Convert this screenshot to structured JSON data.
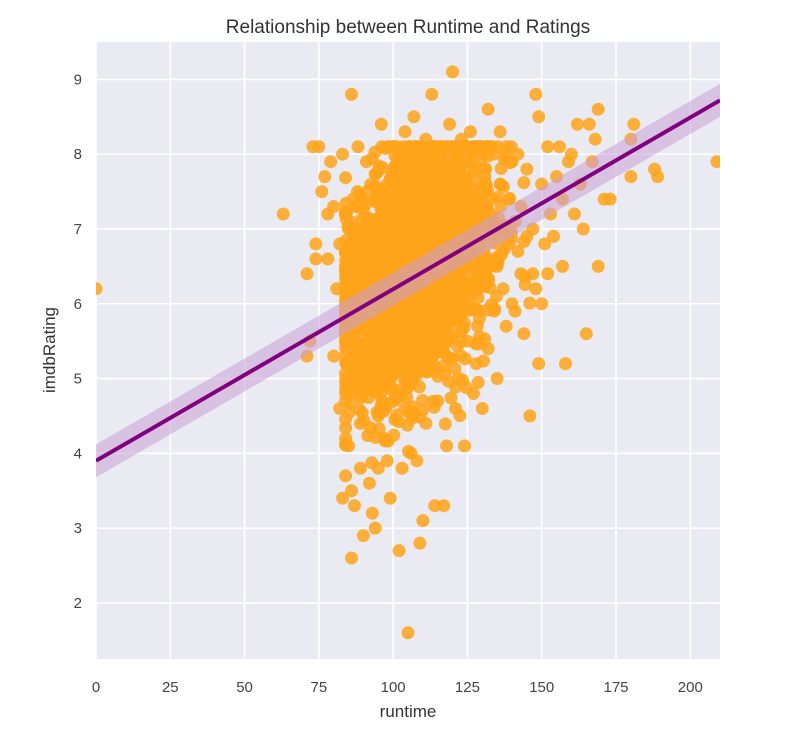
{
  "chart_data": {
    "type": "scatter",
    "title": "Relationship between Runtime and Ratings",
    "xlabel": "runtime",
    "ylabel": "imdbRating",
    "xlim": [
      0,
      210
    ],
    "ylim": [
      1.25,
      9.5
    ],
    "xticks": [
      0,
      25,
      50,
      75,
      100,
      125,
      150,
      175,
      200
    ],
    "yticks": [
      2,
      3,
      4,
      5,
      6,
      7,
      8,
      9
    ],
    "grid": true,
    "legend": "none",
    "colors": {
      "points": "#ffa31a",
      "line": "#800080",
      "ci_band": "#c9a0d6",
      "background": "#eaeaf2",
      "grid": "#ffffff"
    },
    "regression": {
      "x": [
        0,
        210
      ],
      "y": [
        3.9,
        8.72
      ],
      "ci_lower": [
        3.68,
        8.5
      ],
      "ci_upper": [
        4.12,
        8.94
      ]
    },
    "points": [
      [
        0,
        6.2
      ],
      [
        63,
        7.2
      ],
      [
        71,
        5.3
      ],
      [
        71,
        6.4
      ],
      [
        72,
        5.5
      ],
      [
        73,
        8.1
      ],
      [
        74,
        6.8
      ],
      [
        74,
        6.6
      ],
      [
        75,
        8.1
      ],
      [
        76,
        7.5
      ],
      [
        77,
        7.7
      ],
      [
        78,
        7.2
      ],
      [
        78,
        6.6
      ],
      [
        79,
        7.9
      ],
      [
        80,
        5.3
      ],
      [
        80,
        7.3
      ],
      [
        81,
        6.2
      ],
      [
        82,
        6.8
      ],
      [
        82,
        4.6
      ],
      [
        83,
        8.0
      ],
      [
        83,
        3.4
      ],
      [
        84,
        3.7
      ],
      [
        84,
        4.2
      ],
      [
        85,
        4.1
      ],
      [
        85,
        7.0
      ],
      [
        86,
        8.8
      ],
      [
        86,
        3.5
      ],
      [
        86,
        2.6
      ],
      [
        87,
        3.3
      ],
      [
        87,
        6.6
      ],
      [
        88,
        7.5
      ],
      [
        88,
        5.8
      ],
      [
        89,
        4.4
      ],
      [
        89,
        3.8
      ],
      [
        90,
        6.1
      ],
      [
        90,
        2.9
      ],
      [
        91,
        7.9
      ],
      [
        91,
        4.9
      ],
      [
        92,
        3.6
      ],
      [
        92,
        6.5
      ],
      [
        93,
        3.2
      ],
      [
        93,
        5.4
      ],
      [
        94,
        3.0
      ],
      [
        94,
        7.1
      ],
      [
        95,
        3.8
      ],
      [
        95,
        4.5
      ],
      [
        96,
        8.4
      ],
      [
        96,
        5.9
      ],
      [
        97,
        6.8
      ],
      [
        97,
        4.2
      ],
      [
        98,
        3.9
      ],
      [
        98,
        7.6
      ],
      [
        99,
        3.4
      ],
      [
        99,
        5.2
      ],
      [
        100,
        8.1
      ],
      [
        100,
        6.3
      ],
      [
        101,
        4.8
      ],
      [
        101,
        7.4
      ],
      [
        102,
        2.7
      ],
      [
        102,
        5.7
      ],
      [
        103,
        3.8
      ],
      [
        103,
        6.9
      ],
      [
        104,
        8.3
      ],
      [
        104,
        4.6
      ],
      [
        105,
        1.6
      ],
      [
        105,
        7.2
      ],
      [
        106,
        5.6
      ],
      [
        106,
        4.0
      ],
      [
        107,
        8.5
      ],
      [
        107,
        6.4
      ],
      [
        108,
        3.9
      ],
      [
        108,
        7.8
      ],
      [
        109,
        2.8
      ],
      [
        109,
        5.1
      ],
      [
        110,
        3.1
      ],
      [
        110,
        6.7
      ],
      [
        111,
        8.2
      ],
      [
        111,
        4.4
      ],
      [
        112,
        7.3
      ],
      [
        112,
        5.5
      ],
      [
        113,
        8.8
      ],
      [
        113,
        6.0
      ],
      [
        114,
        3.3
      ],
      [
        114,
        7.0
      ],
      [
        115,
        4.7
      ],
      [
        115,
        5.8
      ],
      [
        116,
        8.0
      ],
      [
        116,
        6.5
      ],
      [
        117,
        3.3
      ],
      [
        117,
        7.6
      ],
      [
        118,
        5.3
      ],
      [
        118,
        4.1
      ],
      [
        119,
        8.4
      ],
      [
        119,
        6.2
      ],
      [
        120,
        9.1
      ],
      [
        120,
        5.6
      ],
      [
        121,
        7.4
      ],
      [
        121,
        4.6
      ],
      [
        122,
        6.8
      ],
      [
        122,
        5.0
      ],
      [
        123,
        8.2
      ],
      [
        123,
        7.1
      ],
      [
        124,
        4.1
      ],
      [
        124,
        6.0
      ],
      [
        125,
        5.5
      ],
      [
        125,
        7.9
      ],
      [
        126,
        8.3
      ],
      [
        126,
        6.6
      ],
      [
        127,
        4.8
      ],
      [
        127,
        7.3
      ],
      [
        128,
        5.2
      ],
      [
        128,
        6.9
      ],
      [
        129,
        8.1
      ],
      [
        129,
        5.8
      ],
      [
        130,
        7.5
      ],
      [
        130,
        4.6
      ],
      [
        131,
        6.3
      ],
      [
        131,
        7.8
      ],
      [
        132,
        8.6
      ],
      [
        132,
        5.4
      ],
      [
        133,
        6.9
      ],
      [
        133,
        7.2
      ],
      [
        134,
        5.9
      ],
      [
        134,
        8.0
      ],
      [
        135,
        6.5
      ],
      [
        135,
        5.0
      ],
      [
        136,
        7.6
      ],
      [
        136,
        8.3
      ],
      [
        137,
        6.2
      ],
      [
        137,
        7.0
      ],
      [
        138,
        5.7
      ],
      [
        138,
        8.1
      ],
      [
        139,
        6.8
      ],
      [
        139,
        7.4
      ],
      [
        140,
        6.0
      ],
      [
        140,
        7.9
      ],
      [
        141,
        7.1
      ],
      [
        141,
        5.9
      ],
      [
        142,
        6.7
      ],
      [
        142,
        8.0
      ],
      [
        143,
        7.3
      ],
      [
        143,
        6.4
      ],
      [
        144,
        5.6
      ],
      [
        145,
        7.8
      ],
      [
        145,
        6.9
      ],
      [
        146,
        4.5
      ],
      [
        147,
        7.0
      ],
      [
        147,
        6.4
      ],
      [
        148,
        8.8
      ],
      [
        148,
        6.2
      ],
      [
        149,
        8.5
      ],
      [
        149,
        5.2
      ],
      [
        150,
        7.6
      ],
      [
        150,
        6.0
      ],
      [
        151,
        6.8
      ],
      [
        152,
        8.1
      ],
      [
        152,
        6.4
      ],
      [
        153,
        7.2
      ],
      [
        154,
        6.9
      ],
      [
        155,
        7.7
      ],
      [
        156,
        8.1
      ],
      [
        157,
        6.5
      ],
      [
        157,
        7.4
      ],
      [
        158,
        5.2
      ],
      [
        159,
        7.9
      ],
      [
        160,
        8.0
      ],
      [
        161,
        7.2
      ],
      [
        162,
        8.4
      ],
      [
        163,
        7.6
      ],
      [
        164,
        7.0
      ],
      [
        165,
        5.6
      ],
      [
        166,
        8.4
      ],
      [
        167,
        7.9
      ],
      [
        168,
        8.2
      ],
      [
        169,
        6.5
      ],
      [
        169,
        8.6
      ],
      [
        171,
        7.4
      ],
      [
        173,
        7.4
      ],
      [
        180,
        8.2
      ],
      [
        180,
        7.7
      ],
      [
        181,
        8.4
      ],
      [
        188,
        7.8
      ],
      [
        189,
        7.7
      ],
      [
        209,
        7.9
      ]
    ],
    "cloud": {
      "x_center": 107,
      "x_spread": 12,
      "x_min": 84,
      "x_max": 146,
      "y_center": 6.5,
      "y_spread": 0.75,
      "slope": 0.024,
      "count": 2600,
      "seed": 7
    }
  }
}
